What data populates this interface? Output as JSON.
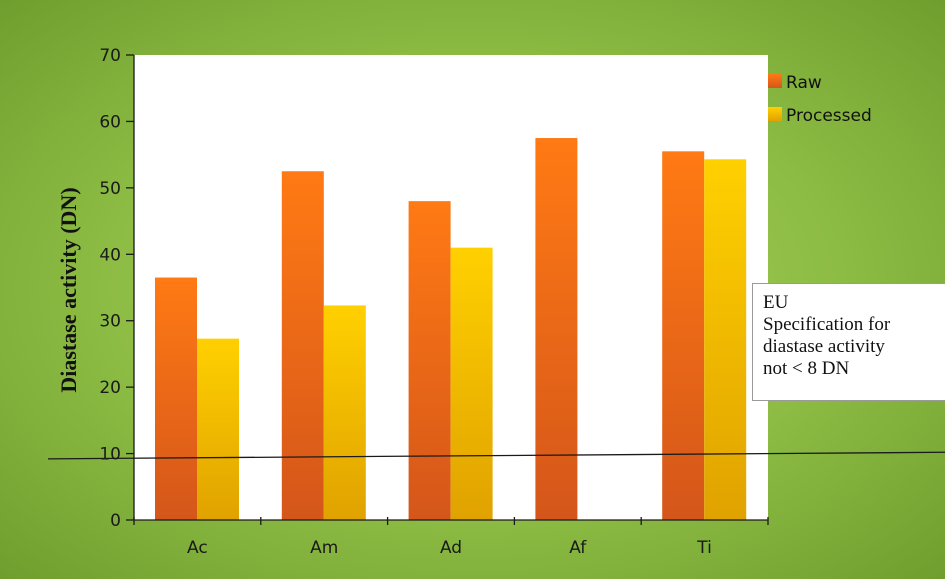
{
  "chart_data": {
    "type": "bar",
    "title": "",
    "xlabel": "",
    "ylabel": "Diastase activity (DN)",
    "ylim": [
      0,
      70
    ],
    "yticks": [
      0,
      10,
      20,
      30,
      40,
      50,
      60,
      70
    ],
    "categories": [
      "Ac",
      "Am",
      "Ad",
      "Af",
      "Ti"
    ],
    "series": [
      {
        "name": "Raw",
        "values": [
          36.5,
          52.5,
          48,
          57.5,
          55.5
        ],
        "color": "#f07a1a"
      },
      {
        "name": "Processed",
        "values": [
          27.3,
          32.3,
          41,
          null,
          54.3
        ],
        "color": "#f7c400"
      }
    ],
    "legend": {
      "placement": "top-right"
    },
    "grid": false,
    "reference_line": {
      "start_value": 9.3,
      "end_value": 10.0
    },
    "annotation": {
      "lines": [
        "EU",
        "Specification for",
        "diastase activity",
        "not < 8 DN"
      ]
    }
  }
}
